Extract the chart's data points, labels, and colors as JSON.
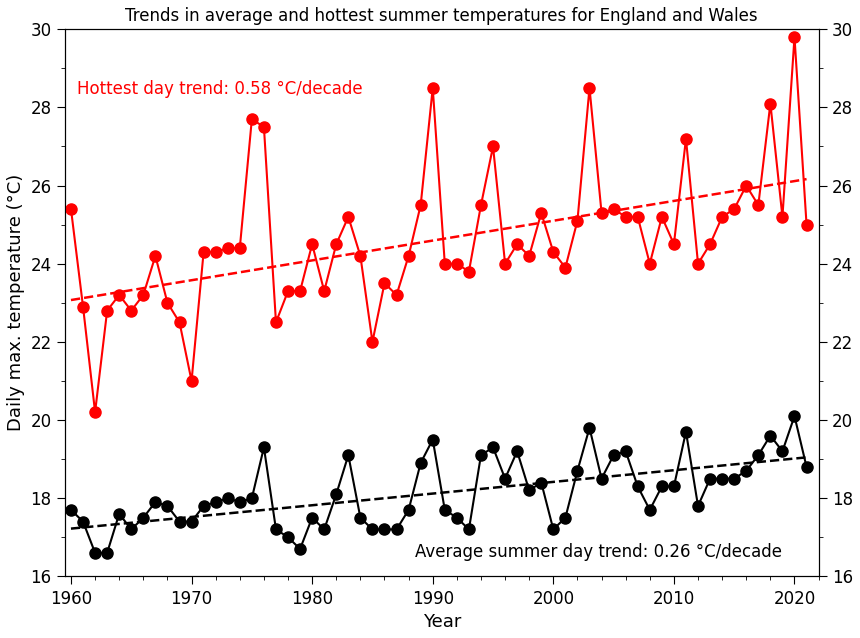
{
  "years": [
    1960,
    1961,
    1962,
    1963,
    1964,
    1965,
    1966,
    1967,
    1968,
    1969,
    1970,
    1971,
    1972,
    1973,
    1974,
    1975,
    1976,
    1977,
    1978,
    1979,
    1980,
    1981,
    1982,
    1983,
    1984,
    1985,
    1986,
    1987,
    1988,
    1989,
    1990,
    1991,
    1992,
    1993,
    1994,
    1995,
    1996,
    1997,
    1998,
    1999,
    2000,
    2001,
    2002,
    2003,
    2004,
    2005,
    2006,
    2007,
    2008,
    2009,
    2010,
    2011,
    2012,
    2013,
    2014,
    2015,
    2016,
    2017,
    2018,
    2019,
    2020,
    2021
  ],
  "avg_summer": [
    17.7,
    17.4,
    16.6,
    16.6,
    17.6,
    17.2,
    17.5,
    17.9,
    17.8,
    17.4,
    17.4,
    17.8,
    17.9,
    18.0,
    17.9,
    18.0,
    19.3,
    17.2,
    17.0,
    16.7,
    17.5,
    17.2,
    18.1,
    19.1,
    17.5,
    17.2,
    17.2,
    17.2,
    17.7,
    18.9,
    19.5,
    17.7,
    17.5,
    17.2,
    19.1,
    19.3,
    18.5,
    19.2,
    18.2,
    18.4,
    17.2,
    17.5,
    18.7,
    19.8,
    18.5,
    19.1,
    19.2,
    18.3,
    17.7,
    18.3,
    18.3,
    19.7,
    17.8,
    18.5,
    18.5,
    18.5,
    18.7,
    19.1,
    19.6,
    19.2,
    20.1,
    18.8
  ],
  "max_summer": [
    25.4,
    22.9,
    20.2,
    22.8,
    23.2,
    22.8,
    23.2,
    24.2,
    23.0,
    22.5,
    21.0,
    24.3,
    24.3,
    24.4,
    24.4,
    27.7,
    27.5,
    22.5,
    23.3,
    23.3,
    24.5,
    23.3,
    24.5,
    25.2,
    24.2,
    22.0,
    23.5,
    23.2,
    24.2,
    25.5,
    28.5,
    24.0,
    24.0,
    23.8,
    25.5,
    27.0,
    24.0,
    24.5,
    24.2,
    25.3,
    24.3,
    23.9,
    25.1,
    28.5,
    25.3,
    25.4,
    25.2,
    25.2,
    24.0,
    25.2,
    24.5,
    27.2,
    24.0,
    24.5,
    25.2,
    25.4,
    26.0,
    25.5,
    28.1,
    25.2,
    29.8,
    25.0
  ],
  "title": "Trends in average and hottest summer temperatures for England and Wales",
  "xlabel": "Year",
  "ylabel": "Daily max. temperature (°C)",
  "ylim": [
    16,
    30
  ],
  "xlim": [
    1959.5,
    2022
  ],
  "avg_trend_label": "Average summer day trend: 0.26 °C/decade",
  "hot_trend_label": "Hottest day trend: 0.58 °C/decade",
  "avg_color": "black",
  "hot_color": "red",
  "marker_size": 8,
  "linewidth": 1.5,
  "title_fontsize": 12,
  "label_fontsize": 13,
  "tick_fontsize": 12,
  "annot_fontsize": 12
}
